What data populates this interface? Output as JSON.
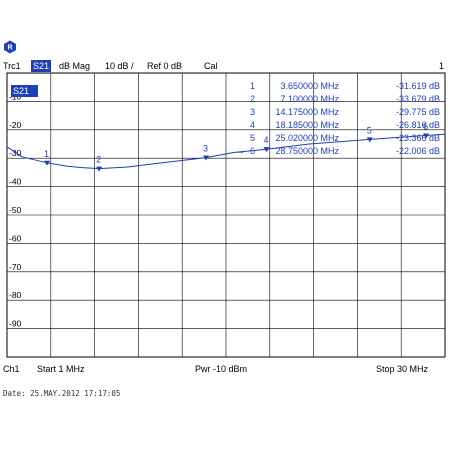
{
  "header": {
    "trace": "Trc1",
    "measurement": "S21",
    "format": "dB Mag",
    "scale": "10 dB /",
    "reference": "Ref 0 dB",
    "cal": "Cal",
    "channel_number": "1"
  },
  "trace_tag": "S21",
  "footer": {
    "channel": "Ch1",
    "start": "Start  1 MHz",
    "power": "Pwr  -10 dBm",
    "stop": "Stop  30 MHz"
  },
  "date_line": "Date: 25.MAY.2012  17:17:05",
  "colors": {
    "trace": "#1f3fb8",
    "grid": "#000000",
    "tag_bg": "#1f3fb8"
  },
  "chart_data": {
    "type": "line",
    "title": "",
    "xlabel": "",
    "ylabel": "",
    "xlim": [
      1,
      30
    ],
    "ylim": [
      -100,
      0
    ],
    "y_ticks": [
      -10,
      -20,
      -30,
      -40,
      -50,
      -60,
      -70,
      -80,
      -90
    ],
    "y_tick_labels": [
      "-10",
      "-20",
      "-30",
      "-40",
      "-50",
      "-60",
      "-70",
      "-80",
      "-90"
    ],
    "grid": true,
    "series": [
      {
        "name": "S21",
        "x": [
          1,
          2,
          3.65,
          5,
          6,
          7.1,
          9,
          11,
          14.175,
          16,
          18.185,
          21,
          23,
          25.02,
          27,
          28.75,
          30
        ],
        "y": [
          -26.0,
          -29.5,
          -31.619,
          -32.8,
          -33.3,
          -33.679,
          -33.1,
          -31.8,
          -29.775,
          -28.0,
          -26.816,
          -25.0,
          -24.2,
          -23.366,
          -22.6,
          -22.006,
          -21.5
        ]
      }
    ],
    "markers": [
      {
        "label": "1",
        "freq_text": "3.650000  MHz",
        "freq": 3.65,
        "value_text": "-31.619  dB",
        "value": -31.619
      },
      {
        "label": "2",
        "freq_text": "7.100000  MHz",
        "freq": 7.1,
        "value_text": "-33.679  dB",
        "value": -33.679
      },
      {
        "label": "3",
        "freq_text": "14.175000  MHz",
        "freq": 14.175,
        "value_text": "-29.775  dB",
        "value": -29.775
      },
      {
        "label": "4",
        "freq_text": "18.185000  MHz",
        "freq": 18.185,
        "value_text": "-26.816  dB",
        "value": -26.816
      },
      {
        "label": "5",
        "freq_text": "25.020000  MHz",
        "freq": 25.02,
        "value_text": "-23.366  dB",
        "value": -23.366
      },
      {
        "label": "6",
        "freq_text": "28.750000  MHz",
        "freq": 28.75,
        "value_text": "-22.006  dB",
        "value": -22.006
      }
    ],
    "active_marker": "6"
  }
}
